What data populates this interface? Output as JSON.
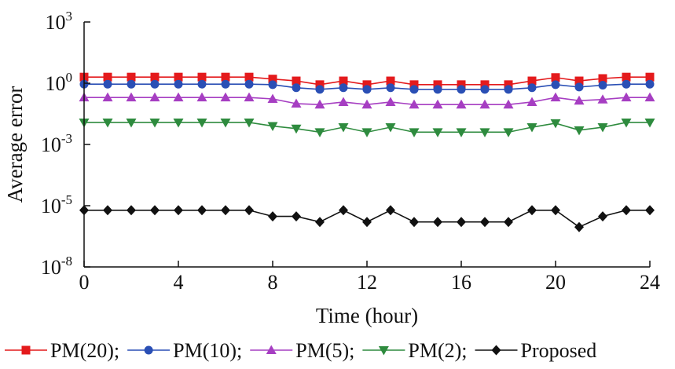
{
  "chart_data": {
    "type": "line",
    "xlabel": "Time (hour)",
    "ylabel": "Average error",
    "xlim": [
      0,
      24
    ],
    "x_ticks": [
      {
        "value": 0,
        "label": "0"
      },
      {
        "value": 4,
        "label": "4"
      },
      {
        "value": 8,
        "label": "8"
      },
      {
        "value": 12,
        "label": "12"
      },
      {
        "value": 16,
        "label": "16"
      },
      {
        "value": 20,
        "label": "20"
      },
      {
        "value": 24,
        "label": "24"
      }
    ],
    "y_scale": "log",
    "y_ticks": [
      {
        "exp": 3,
        "base": "10",
        "sup": "3"
      },
      {
        "exp": 0,
        "base": "10",
        "sup": "0"
      },
      {
        "exp": -3,
        "base": "10",
        "sup": "-3"
      },
      {
        "exp": -5,
        "base": "10",
        "sup": "-5"
      },
      {
        "exp": -8,
        "base": "10",
        "sup": "-8"
      }
    ],
    "grid": false,
    "legend_position": "bottom",
    "x": [
      0,
      1,
      2,
      3,
      4,
      5,
      6,
      7,
      8,
      9,
      10,
      11,
      12,
      13,
      14,
      15,
      16,
      17,
      18,
      19,
      20,
      21,
      22,
      23,
      24
    ],
    "series": [
      {
        "name": "PM(20);",
        "color": "#e41a1c",
        "marker": "square",
        "values": [
          2.0,
          2.0,
          2.0,
          2.0,
          2.0,
          2.0,
          2.0,
          2.0,
          1.6,
          1.3,
          0.85,
          1.3,
          0.85,
          1.3,
          0.85,
          0.85,
          0.85,
          0.85,
          0.85,
          1.3,
          1.9,
          1.3,
          1.7,
          2.0,
          2.0
        ]
      },
      {
        "name": "PM(10);",
        "color": "#2a4fb5",
        "marker": "circle",
        "values": [
          0.9,
          0.9,
          0.9,
          0.9,
          0.9,
          0.9,
          0.9,
          0.9,
          0.85,
          0.6,
          0.5,
          0.6,
          0.5,
          0.6,
          0.5,
          0.5,
          0.5,
          0.5,
          0.5,
          0.6,
          0.85,
          0.65,
          0.8,
          0.9,
          0.9
        ]
      },
      {
        "name": "PM(5);",
        "color": "#a63ec2",
        "marker": "triangle-up",
        "values": [
          0.2,
          0.2,
          0.2,
          0.2,
          0.2,
          0.2,
          0.2,
          0.2,
          0.17,
          0.1,
          0.09,
          0.12,
          0.09,
          0.12,
          0.09,
          0.09,
          0.09,
          0.09,
          0.09,
          0.12,
          0.2,
          0.14,
          0.16,
          0.2,
          0.2
        ]
      },
      {
        "name": "PM(2);",
        "color": "#2e8b3e",
        "marker": "triangle-down",
        "values": [
          0.012,
          0.012,
          0.012,
          0.012,
          0.012,
          0.012,
          0.012,
          0.012,
          0.008,
          0.006,
          0.004,
          0.007,
          0.004,
          0.007,
          0.004,
          0.004,
          0.004,
          0.004,
          0.004,
          0.007,
          0.011,
          0.005,
          0.007,
          0.012,
          0.012
        ]
      },
      {
        "name": "Proposed",
        "color": "#111111",
        "marker": "diamond",
        "values": [
          6e-06,
          6e-06,
          6e-06,
          6e-06,
          6e-06,
          6e-06,
          6e-06,
          6e-06,
          3e-06,
          3e-06,
          1.6e-06,
          6e-06,
          1.6e-06,
          6e-06,
          1.6e-06,
          1.6e-06,
          1.6e-06,
          1.6e-06,
          1.6e-06,
          6e-06,
          6e-06,
          9e-07,
          3e-06,
          6e-06,
          6e-06
        ]
      }
    ]
  }
}
